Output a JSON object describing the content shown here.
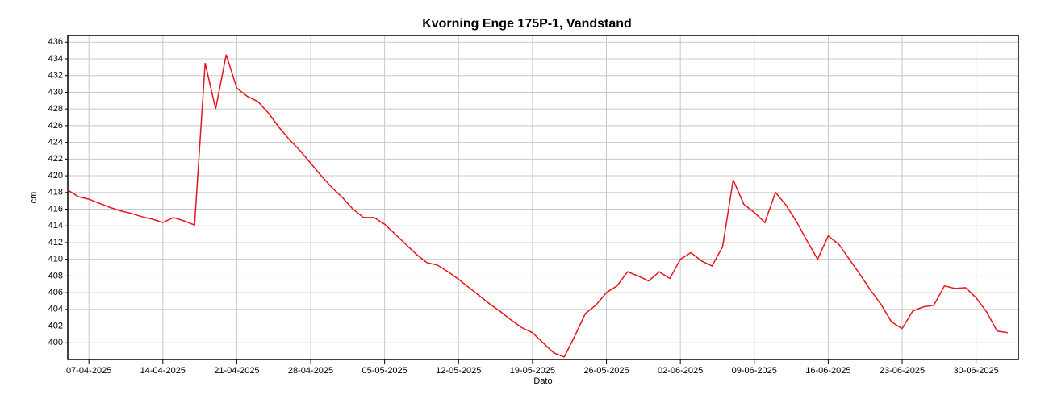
{
  "chart_data": {
    "type": "line",
    "title": "Kvorning Enge 175P-1, Vandstand",
    "xlabel": "Dato",
    "ylabel": "cm",
    "x": [
      "05-04-2025",
      "06-04-2025",
      "07-04-2025",
      "08-04-2025",
      "09-04-2025",
      "10-04-2025",
      "11-04-2025",
      "12-04-2025",
      "13-04-2025",
      "14-04-2025",
      "15-04-2025",
      "16-04-2025",
      "17-04-2025",
      "18-04-2025",
      "19-04-2025",
      "20-04-2025",
      "21-04-2025",
      "22-04-2025",
      "23-04-2025",
      "24-04-2025",
      "25-04-2025",
      "26-04-2025",
      "27-04-2025",
      "28-04-2025",
      "29-04-2025",
      "30-04-2025",
      "01-05-2025",
      "02-05-2025",
      "03-05-2025",
      "04-05-2025",
      "05-05-2025",
      "06-05-2025",
      "07-05-2025",
      "08-05-2025",
      "09-05-2025",
      "10-05-2025",
      "11-05-2025",
      "12-05-2025",
      "13-05-2025",
      "14-05-2025",
      "15-05-2025",
      "16-05-2025",
      "17-05-2025",
      "18-05-2025",
      "19-05-2025",
      "20-05-2025",
      "21-05-2025",
      "22-05-2025",
      "23-05-2025",
      "24-05-2025",
      "25-05-2025",
      "26-05-2025",
      "27-05-2025",
      "28-05-2025",
      "29-05-2025",
      "30-05-2025",
      "31-05-2025",
      "01-06-2025",
      "02-06-2025",
      "03-06-2025",
      "04-06-2025",
      "05-06-2025",
      "06-06-2025",
      "07-06-2025",
      "08-06-2025",
      "09-06-2025",
      "10-06-2025",
      "11-06-2025",
      "12-06-2025",
      "13-06-2025",
      "14-06-2025",
      "15-06-2025",
      "16-06-2025",
      "17-06-2025",
      "18-06-2025",
      "19-06-2025",
      "20-06-2025",
      "21-06-2025",
      "22-06-2025",
      "23-06-2025",
      "24-06-2025",
      "25-06-2025",
      "26-06-2025",
      "27-06-2025",
      "28-06-2025",
      "29-06-2025",
      "30-06-2025",
      "01-07-2025",
      "02-07-2025",
      "03-07-2025"
    ],
    "series": [
      {
        "name": "Vandstand",
        "color": "#e8141c",
        "values": [
          418.3,
          417.5,
          417.2,
          416.7,
          416.2,
          415.8,
          415.5,
          415.1,
          414.8,
          414.4,
          415.0,
          414.6,
          414.1,
          433.5,
          428.0,
          434.5,
          430.5,
          429.5,
          428.9,
          427.5,
          425.8,
          424.3,
          423.0,
          421.5,
          420.0,
          418.6,
          417.4,
          416.0,
          415.0,
          415.0,
          414.2,
          413.0,
          411.8,
          410.6,
          409.6,
          409.3,
          408.5,
          407.6,
          406.6,
          405.6,
          404.6,
          403.7,
          402.7,
          401.8,
          401.2,
          400.0,
          398.8,
          398.3,
          400.8,
          403.5,
          404.5,
          406.0,
          406.8,
          408.5,
          408.0,
          407.4,
          408.5,
          407.7,
          410.0,
          410.8,
          409.8,
          409.2,
          411.5,
          419.5,
          416.6,
          415.6,
          414.4,
          418.0,
          416.5,
          414.5,
          412.2,
          410.0,
          412.8,
          411.8,
          410.0,
          408.2,
          406.3,
          404.6,
          402.5,
          401.7,
          403.8,
          404.3,
          404.5,
          406.8,
          406.5,
          406.6,
          405.4,
          403.7,
          401.4,
          401.2
        ]
      }
    ],
    "xlim": [
      "05-04-2025",
      "04-07-2025"
    ],
    "xticks": [
      "07-04-2025",
      "14-04-2025",
      "21-04-2025",
      "28-04-2025",
      "05-05-2025",
      "12-05-2025",
      "19-05-2025",
      "26-05-2025",
      "02-06-2025",
      "09-06-2025",
      "16-06-2025",
      "23-06-2025",
      "30-06-2025"
    ],
    "ylim": [
      398,
      436.8
    ],
    "yticks": [
      400,
      402,
      404,
      406,
      408,
      410,
      412,
      414,
      416,
      418,
      420,
      422,
      424,
      426,
      428,
      430,
      432,
      434,
      436
    ],
    "grid": true
  }
}
